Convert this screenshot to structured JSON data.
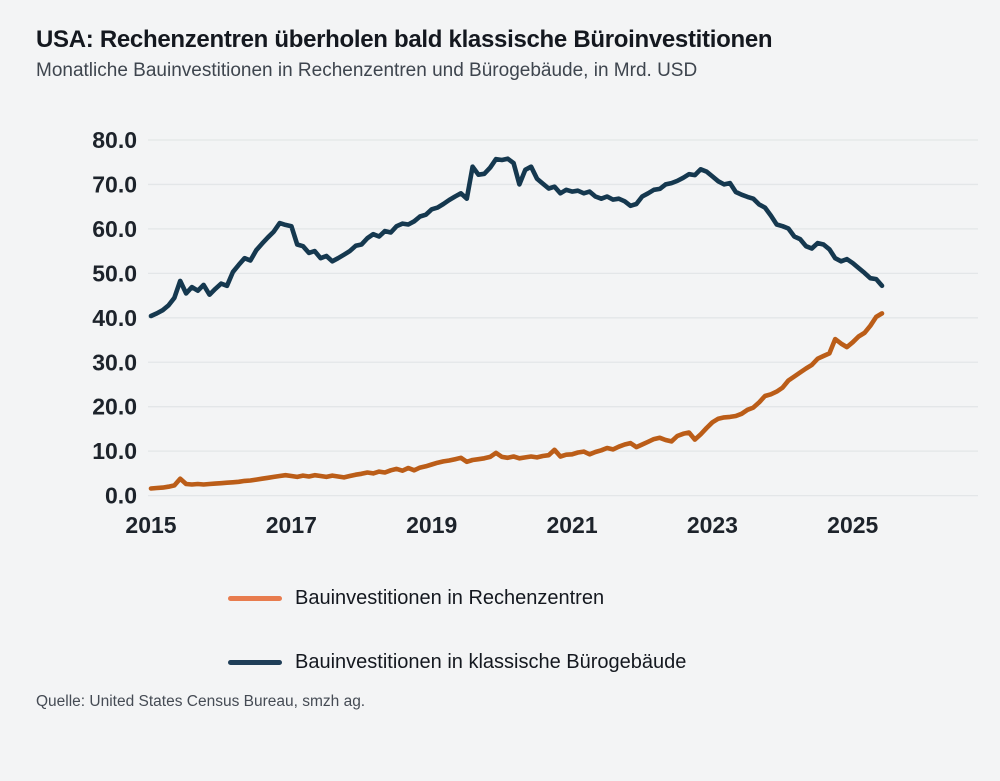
{
  "header": {
    "title": "USA: Rechenzentren überholen bald klassische Büroinvestitionen",
    "subtitle": "Monatliche Bauinvestitionen in Rechenzentren und Bürogebäude, in Mrd. USD"
  },
  "chart_data": {
    "type": "line",
    "title": "USA: Rechenzentren überholen bald klassische Büroinvestitionen",
    "subtitle": "Monatliche Bauinvestitionen in Rechenzentren und Bürogebäude, in Mrd. USD",
    "unit": "Mrd. USD",
    "frequency": "monthly",
    "x_start": "2015-01",
    "x_end": "2025-06",
    "x_ticks": [
      2015,
      2017,
      2019,
      2021,
      2023,
      2025
    ],
    "x_tick_labels": [
      "2015",
      "2017",
      "2019",
      "2021",
      "2023",
      "2025"
    ],
    "y_ticks": [
      0,
      10,
      20,
      30,
      40,
      50,
      60,
      70,
      80
    ],
    "y_tick_labels": [
      "0.0",
      "10.0",
      "20.0",
      "30.0",
      "40.0",
      "50.0",
      "60.0",
      "70.0",
      "80.0"
    ],
    "ylim": [
      0,
      80
    ],
    "grid": "horizontal",
    "gridline_color": "#e3e6e8",
    "background_color": "#f3f4f5",
    "legend_position": "bottom-left",
    "series": [
      {
        "name": "Bauinvestitionen in Rechenzentren",
        "color": "#bb5d18",
        "legend_color": "#e87c4e",
        "values": [
          1.6,
          1.7,
          1.8,
          2.0,
          2.3,
          3.8,
          2.6,
          2.5,
          2.6,
          2.5,
          2.6,
          2.7,
          2.8,
          2.9,
          3.0,
          3.1,
          3.3,
          3.4,
          3.6,
          3.8,
          4.0,
          4.2,
          4.4,
          4.6,
          4.4,
          4.2,
          4.5,
          4.3,
          4.6,
          4.4,
          4.2,
          4.5,
          4.3,
          4.1,
          4.4,
          4.7,
          4.9,
          5.2,
          5.0,
          5.4,
          5.2,
          5.7,
          6.0,
          5.6,
          6.2,
          5.7,
          6.3,
          6.6,
          7.0,
          7.4,
          7.7,
          7.9,
          8.2,
          8.5,
          7.6,
          8.0,
          8.2,
          8.4,
          8.7,
          9.6,
          8.7,
          8.5,
          8.8,
          8.4,
          8.6,
          8.8,
          8.6,
          8.9,
          9.1,
          10.3,
          8.8,
          9.2,
          9.3,
          9.7,
          9.9,
          9.3,
          9.8,
          10.2,
          10.7,
          10.4,
          11.0,
          11.5,
          11.8,
          10.9,
          11.5,
          12.1,
          12.7,
          13.0,
          12.5,
          12.2,
          13.4,
          13.9,
          14.2,
          12.6,
          13.8,
          15.2,
          16.5,
          17.3,
          17.6,
          17.7,
          17.9,
          18.4,
          19.3,
          19.8,
          21.0,
          22.4,
          22.8,
          23.4,
          24.3,
          25.9,
          26.8,
          27.7,
          28.6,
          29.4,
          30.8,
          31.4,
          32.0,
          35.2,
          34.2,
          33.4,
          34.5,
          35.8,
          36.6,
          38.2,
          40.2,
          41.0
        ]
      },
      {
        "name": "Bauinvestitionen in klassische Bürogebäude",
        "color": "#15384f",
        "legend_color": "#1f3e58",
        "values": [
          40.4,
          41.0,
          41.7,
          42.8,
          44.5,
          48.3,
          45.5,
          46.9,
          46.1,
          47.4,
          45.2,
          46.5,
          47.7,
          47.2,
          50.3,
          51.9,
          53.4,
          52.9,
          55.2,
          56.7,
          58.1,
          59.4,
          61.3,
          60.9,
          60.6,
          56.5,
          56.1,
          54.6,
          55.0,
          53.4,
          53.9,
          52.7,
          53.4,
          54.2,
          55.0,
          56.2,
          56.5,
          57.9,
          58.8,
          58.3,
          59.5,
          59.2,
          60.6,
          61.2,
          61.0,
          61.7,
          62.8,
          63.2,
          64.4,
          64.8,
          65.6,
          66.5,
          67.3,
          68.0,
          66.8,
          74.0,
          72.2,
          72.4,
          73.8,
          75.7,
          75.5,
          75.8,
          74.8,
          70.0,
          73.3,
          74.0,
          71.3,
          70.2,
          69.1,
          69.5,
          68.0,
          68.8,
          68.4,
          68.6,
          68.0,
          68.4,
          67.3,
          66.8,
          67.3,
          66.6,
          66.8,
          66.2,
          65.2,
          65.6,
          67.3,
          68.0,
          68.8,
          69.0,
          70.0,
          70.3,
          70.8,
          71.5,
          72.3,
          72.1,
          73.4,
          72.9,
          71.8,
          70.7,
          70.0,
          70.3,
          68.3,
          67.7,
          67.2,
          66.8,
          65.5,
          64.8,
          63.0,
          61.0,
          60.6,
          60.1,
          58.3,
          57.7,
          56.1,
          55.6,
          56.8,
          56.5,
          55.4,
          53.4,
          52.7,
          53.2,
          52.3,
          51.2,
          50.1,
          48.9,
          48.7,
          47.2
        ]
      }
    ]
  },
  "legend": {
    "items": [
      {
        "label": "Bauinvestitionen in Rechenzentren"
      },
      {
        "label": "Bauinvestitionen in klassische Bürogebäude"
      }
    ]
  },
  "source": {
    "text": "Quelle: United States Census Bureau, smzh ag."
  }
}
